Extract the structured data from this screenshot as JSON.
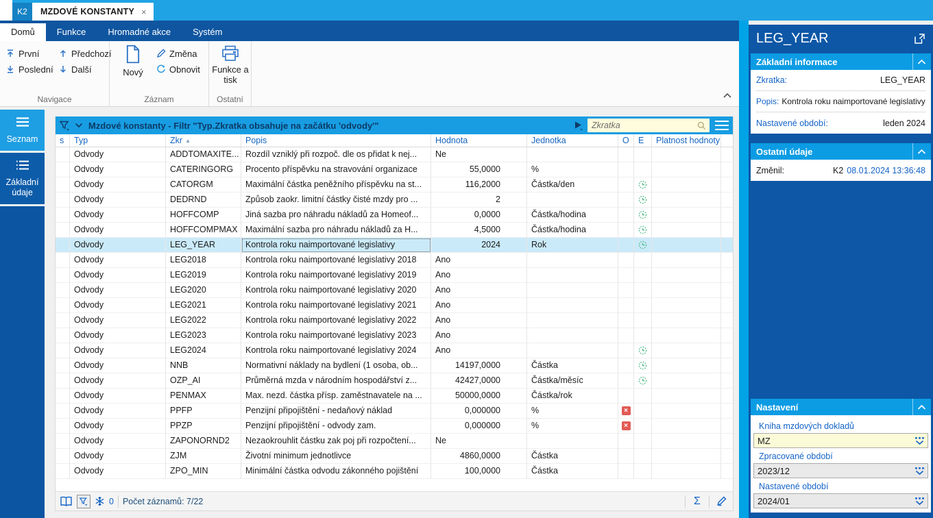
{
  "colors": {
    "accent_cyan": "#1E9EE3",
    "strip_cyan": "#00A3E6",
    "ribbon_blue": "#0F55A0",
    "panel_blue": "#0D57A6",
    "section_header_blue": "#0C9CE4",
    "selection": "#CBEAF9",
    "label_blue": "#1464C8",
    "ok_green": "#58BE8C",
    "error_red": "#E25B55",
    "search_yellow": "#FFFBDC"
  },
  "window": {
    "app_badge": "K2",
    "tab_title": "MZDOVÉ KONSTANTY",
    "close_glyph": "×"
  },
  "ribbon": {
    "tabs": [
      {
        "label": "Domů",
        "active": true
      },
      {
        "label": "Funkce",
        "active": false
      },
      {
        "label": "Hromadné akce",
        "active": false
      },
      {
        "label": "Systém",
        "active": false
      }
    ],
    "nav": {
      "first": "První",
      "last": "Poslední",
      "prev": "Předchozí",
      "next": "Další",
      "group": "Navigace"
    },
    "record": {
      "new": "Nový",
      "change": "Změna",
      "refresh": "Obnovit",
      "group": "Záznam"
    },
    "other": {
      "print": "Funkce a tisk",
      "group": "Ostatní"
    }
  },
  "sidebar": {
    "items": [
      {
        "label": "Seznam",
        "active": true
      },
      {
        "label": "Základní údaje",
        "active": false
      }
    ]
  },
  "browse": {
    "filter_title": "Mzdové konstanty - Filtr \"Typ.Zkratka obsahuje na začátku 'odvody'\"",
    "search_placeholder": "Zkratka",
    "columns": [
      "s",
      "Typ",
      "Zkr",
      "Popis",
      "Hodnota",
      "Jednotka",
      "O",
      "E",
      "Platnost hodnoty"
    ],
    "sort": {
      "column": "Zkr",
      "dir": "asc",
      "glyph": "▲"
    },
    "rows": [
      {
        "typ": "Odvody",
        "zkr": "ADDTOMAXITE...",
        "popis": "Rozdíl vzniklý při rozpoč. dle os přidat k nej...",
        "hodnota": "Ne",
        "num": false,
        "jednotka": "",
        "o": "",
        "e": "",
        "selected": false
      },
      {
        "typ": "Odvody",
        "zkr": "CATERINGORG",
        "popis": "Procento příspěvku na stravování organizace",
        "hodnota": "55,0000",
        "num": true,
        "jednotka": "%",
        "o": "",
        "e": "",
        "selected": false
      },
      {
        "typ": "Odvody",
        "zkr": "CATORGM",
        "popis": "Maximální částka peněžního příspěvku na st...",
        "hodnota": "116,2000",
        "num": true,
        "jednotka": "Částka/den",
        "o": "",
        "e": "clock",
        "selected": false
      },
      {
        "typ": "Odvody",
        "zkr": "DEDRND",
        "popis": "Způsob zaokr. limitní částky čisté mzdy pro ...",
        "hodnota": "2",
        "num": true,
        "jednotka": "",
        "o": "",
        "e": "clock",
        "selected": false
      },
      {
        "typ": "Odvody",
        "zkr": "HOFFCOMP",
        "popis": "Jiná sazba pro náhradu nákladů za Homeof...",
        "hodnota": "0,0000",
        "num": true,
        "jednotka": "Částka/hodina",
        "o": "",
        "e": "clock",
        "selected": false
      },
      {
        "typ": "Odvody",
        "zkr": "HOFFCOMPMAX",
        "popis": "Maximální sazba pro náhradu nákladů za H...",
        "hodnota": "4,5000",
        "num": true,
        "jednotka": "Částka/hodina",
        "o": "",
        "e": "clock",
        "selected": false
      },
      {
        "typ": "Odvody",
        "zkr": "LEG_YEAR",
        "popis": "Kontrola roku naimportované legislativy",
        "hodnota": "2024",
        "num": true,
        "jednotka": "Rok",
        "o": "",
        "e": "clock",
        "selected": true
      },
      {
        "typ": "Odvody",
        "zkr": "LEG2018",
        "popis": "Kontrola roku naimportované legislativy 2018",
        "hodnota": "Ano",
        "num": false,
        "jednotka": "",
        "o": "",
        "e": "",
        "selected": false
      },
      {
        "typ": "Odvody",
        "zkr": "LEG2019",
        "popis": "Kontrola roku naimportované legislativy 2019",
        "hodnota": "Ano",
        "num": false,
        "jednotka": "",
        "o": "",
        "e": "",
        "selected": false
      },
      {
        "typ": "Odvody",
        "zkr": "LEG2020",
        "popis": "Kontrola roku naimportované legislativy 2020",
        "hodnota": "Ano",
        "num": false,
        "jednotka": "",
        "o": "",
        "e": "",
        "selected": false
      },
      {
        "typ": "Odvody",
        "zkr": "LEG2021",
        "popis": "Kontrola roku naimportované legislativy 2021",
        "hodnota": "Ano",
        "num": false,
        "jednotka": "",
        "o": "",
        "e": "",
        "selected": false
      },
      {
        "typ": "Odvody",
        "zkr": "LEG2022",
        "popis": "Kontrola roku naimportované legislativy 2022",
        "hodnota": "Ano",
        "num": false,
        "jednotka": "",
        "o": "",
        "e": "",
        "selected": false
      },
      {
        "typ": "Odvody",
        "zkr": "LEG2023",
        "popis": "Kontrola roku naimportované legislativy 2023",
        "hodnota": "Ano",
        "num": false,
        "jednotka": "",
        "o": "",
        "e": "",
        "selected": false
      },
      {
        "typ": "Odvody",
        "zkr": "LEG2024",
        "popis": "Kontrola roku naimportované legislativy 2024",
        "hodnota": "Ano",
        "num": false,
        "jednotka": "",
        "o": "",
        "e": "clock",
        "selected": false
      },
      {
        "typ": "Odvody",
        "zkr": "NNB",
        "popis": "Normativní náklady na bydlení (1 osoba, ob...",
        "hodnota": "14197,0000",
        "num": true,
        "jednotka": "Částka",
        "o": "",
        "e": "clock",
        "selected": false
      },
      {
        "typ": "Odvody",
        "zkr": "OZP_AI",
        "popis": "Průměrná mzda v národním hospodářství z...",
        "hodnota": "42427,0000",
        "num": true,
        "jednotka": "Částka/měsíc",
        "o": "",
        "e": "clock",
        "selected": false
      },
      {
        "typ": "Odvody",
        "zkr": "PENMAX",
        "popis": "Max. nezd. částka přísp. zaměstnavatele na ...",
        "hodnota": "50000,0000",
        "num": true,
        "jednotka": "Částka/rok",
        "o": "",
        "e": "",
        "selected": false
      },
      {
        "typ": "Odvody",
        "zkr": "PPFP",
        "popis": "Penzijní připojištění - nedaňový náklad",
        "hodnota": "0,000000",
        "num": true,
        "jednotka": "%",
        "o": "error",
        "e": "",
        "selected": false
      },
      {
        "typ": "Odvody",
        "zkr": "PPZP",
        "popis": "Penzijní připojištění - odvody zam.",
        "hodnota": "0,000000",
        "num": true,
        "jednotka": "%",
        "o": "error",
        "e": "",
        "selected": false
      },
      {
        "typ": "Odvody",
        "zkr": "ZAPONORND2",
        "popis": "Nezaokrouhlit částku zak poj při rozpočtení...",
        "hodnota": "Ne",
        "num": false,
        "jednotka": "",
        "o": "",
        "e": "",
        "selected": false
      },
      {
        "typ": "Odvody",
        "zkr": "ZJM",
        "popis": "Životní minimum jednotlivce",
        "hodnota": "4860,0000",
        "num": true,
        "jednotka": "Částka",
        "o": "",
        "e": "",
        "selected": false
      },
      {
        "typ": "Odvody",
        "zkr": "ZPO_MIN",
        "popis": "Minimální částka odvodu zákonného pojištění",
        "hodnota": "100,0000",
        "num": true,
        "jednotka": "Částka",
        "o": "",
        "e": "",
        "selected": false
      }
    ],
    "status": {
      "badge_count": "0",
      "records_label": "Počet záznamů: 7/22",
      "sigma": "Σ"
    }
  },
  "preview": {
    "title": "LEG_YEAR",
    "basic": {
      "title": "Základní informace",
      "zkratka_label": "Zkratka:",
      "zkratka": "LEG_YEAR",
      "popis_label": "Popis:",
      "popis": "Kontrola roku naimportované legislativy",
      "obdobi_label": "Nastavené období:",
      "obdobi": "leden 2024"
    },
    "other": {
      "title": "Ostatní údaje",
      "zmenil_label": "Změnil:",
      "zmenil_user": "K2",
      "zmenil_date": "08.01.2024 13:36:48"
    },
    "settings": {
      "title": "Nastavení",
      "kniha_label": "Kniha mzdových dokladů",
      "kniha": "MZ",
      "zprac_label": "Zpracované období",
      "zprac": "2023/12",
      "nastav_label": "Nastavené období",
      "nastav": "2024/01"
    }
  }
}
